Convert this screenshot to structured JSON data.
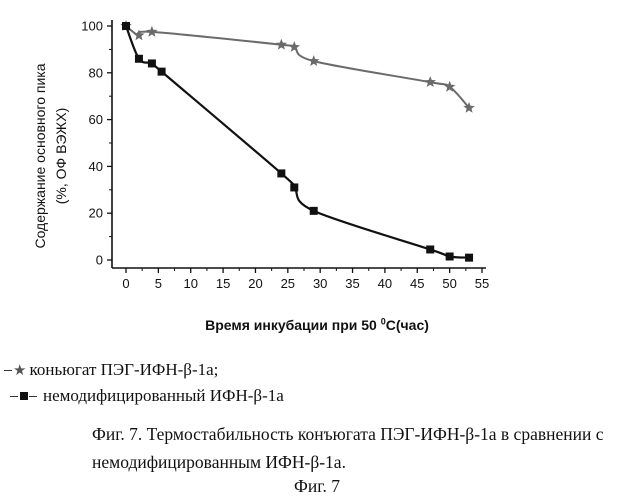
{
  "chart_data": {
    "type": "line",
    "xlabel": "Время инкубации при 50",
    "xlabel_sup": "0",
    "xlabel_tail": "C(час)",
    "ylabel_line1": "Содержание основного пика",
    "ylabel_line2": "(%, ОФ ВЭЖХ)",
    "xlim": [
      0,
      55
    ],
    "ylim": [
      0,
      100
    ],
    "xticks": [
      "0",
      "5",
      "10",
      "15",
      "20",
      "25",
      "30",
      "35",
      "40",
      "45",
      "50",
      "55"
    ],
    "yticks": [
      "0",
      "20",
      "40",
      "60",
      "80",
      "100"
    ],
    "xtick_values": [
      0,
      5,
      10,
      15,
      20,
      25,
      30,
      35,
      40,
      45,
      50,
      55
    ],
    "ytick_values": [
      0,
      20,
      40,
      60,
      80,
      100
    ],
    "grid": false,
    "series": [
      {
        "name": "коньюгат  ПЭГ-ИФН-β-1а;",
        "marker": "star",
        "color": "#6b6b6b",
        "x": [
          0,
          2,
          4,
          24,
          26,
          29,
          47,
          50,
          53
        ],
        "y": [
          100,
          96,
          97.5,
          92,
          91,
          85,
          76,
          74,
          65
        ]
      },
      {
        "name": "немодифицированный ИФН-β-1а",
        "marker": "square",
        "color": "#111111",
        "x": [
          0,
          2,
          4,
          5.5,
          24,
          26,
          29,
          47,
          50,
          53
        ],
        "y": [
          100,
          86,
          84,
          80.5,
          37,
          31,
          21,
          4.5,
          1.5,
          1
        ]
      }
    ]
  },
  "legend": {
    "series1_label": "коньюгат  ПЭГ-ИФН-β-1а;",
    "series2_label": "немодифицированный ИФН-β-1а"
  },
  "caption": {
    "text": "Фиг. 7. Термостабильность конъюгата ПЭГ-ИФН-β-1а в сравнении с немодифицированным ИФН-β-1а.",
    "figure_label": "Фиг. 7"
  }
}
